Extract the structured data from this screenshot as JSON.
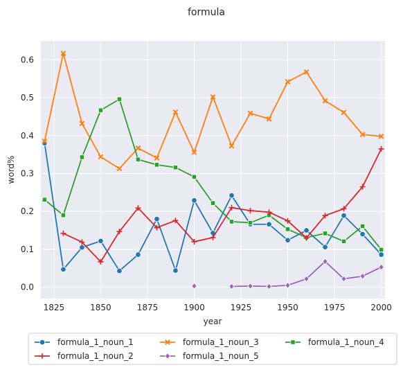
{
  "chart_data": {
    "type": "line",
    "title": "formula",
    "xlabel": "year",
    "ylabel": "word%",
    "xlim": [
      1818,
      2002
    ],
    "ylim": [
      -0.03,
      0.65
    ],
    "xticks": [
      1825,
      1850,
      1875,
      1900,
      1925,
      1950,
      1975,
      2000
    ],
    "yticks": [
      0.0,
      0.1,
      0.2,
      0.3,
      0.4,
      0.5,
      0.6
    ],
    "grid": true,
    "legend_position": "bottom",
    "x": [
      1820,
      1830,
      1840,
      1850,
      1860,
      1870,
      1880,
      1890,
      1900,
      1910,
      1920,
      1930,
      1940,
      1950,
      1960,
      1970,
      1980,
      1990,
      2000
    ],
    "series": [
      {
        "name": "formula_1_noun_1",
        "color": "#1f77b4",
        "marker": "circle",
        "values": [
          0.38,
          0.047,
          0.105,
          0.122,
          0.043,
          0.086,
          0.18,
          0.044,
          0.229,
          0.143,
          0.242,
          0.166,
          0.166,
          0.124,
          0.15,
          0.106,
          0.189,
          0.14,
          0.086
        ]
      },
      {
        "name": "formula_1_noun_3",
        "color": "#ff7f0e",
        "marker": "x",
        "values": [
          0.385,
          0.617,
          0.432,
          0.344,
          0.313,
          0.367,
          0.341,
          0.462,
          0.356,
          0.502,
          0.373,
          0.459,
          0.444,
          0.542,
          0.568,
          0.492,
          0.461,
          0.403,
          0.398
        ]
      },
      {
        "name": "formula_1_noun_4",
        "color": "#2ca02c",
        "marker": "square",
        "values": [
          0.231,
          0.19,
          0.343,
          0.467,
          0.496,
          0.337,
          0.323,
          0.316,
          0.291,
          0.222,
          0.173,
          0.17,
          0.19,
          0.153,
          0.131,
          0.142,
          0.121,
          0.161,
          0.099
        ]
      },
      {
        "name": "formula_1_noun_2",
        "color": "#d62728",
        "marker": "plus",
        "values": [
          null,
          0.142,
          0.119,
          0.067,
          0.147,
          0.209,
          0.157,
          0.176,
          0.12,
          0.131,
          0.21,
          0.202,
          0.198,
          0.175,
          0.13,
          0.189,
          0.207,
          0.265,
          0.365
        ]
      },
      {
        "name": "formula_1_noun_5",
        "color": "#9467bd",
        "marker": "diamond",
        "values": [
          null,
          null,
          null,
          null,
          null,
          null,
          null,
          null,
          0.003,
          null,
          0.002,
          0.003,
          0.002,
          0.005,
          0.022,
          0.068,
          0.022,
          0.029,
          0.053
        ]
      }
    ]
  },
  "legend": {
    "items": [
      {
        "series": "formula_1_noun_1",
        "label": "formula_1_noun_1"
      },
      {
        "series": "formula_1_noun_3",
        "label": "formula_1_noun_3"
      },
      {
        "series": "formula_1_noun_4",
        "label": "formula_1_noun_4"
      },
      {
        "series": "formula_1_noun_2",
        "label": "formula_1_noun_2"
      },
      {
        "series": "formula_1_noun_5",
        "label": "formula_1_noun_5"
      }
    ]
  }
}
